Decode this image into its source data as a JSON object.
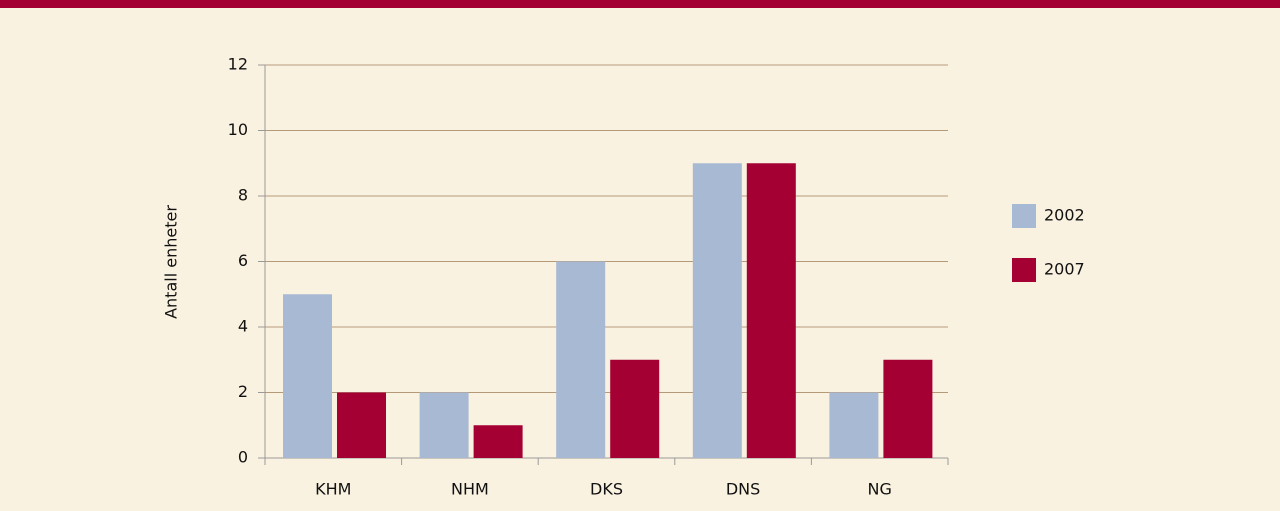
{
  "chart_data": {
    "type": "bar",
    "y_label": "Antall enheter",
    "categories": [
      "KHM",
      "NHM",
      "DKS",
      "DNS",
      "NG"
    ],
    "series": [
      {
        "name": "2002",
        "color": "#a8b9d4",
        "values": [
          5,
          2,
          6,
          9,
          2
        ]
      },
      {
        "name": "2007",
        "color": "#a50034",
        "values": [
          2,
          1,
          3,
          9,
          3
        ]
      }
    ],
    "ylim": [
      0,
      12
    ],
    "yticks": [
      0,
      2,
      4,
      6,
      8,
      10,
      12
    ],
    "grid": true,
    "legend": "right"
  }
}
